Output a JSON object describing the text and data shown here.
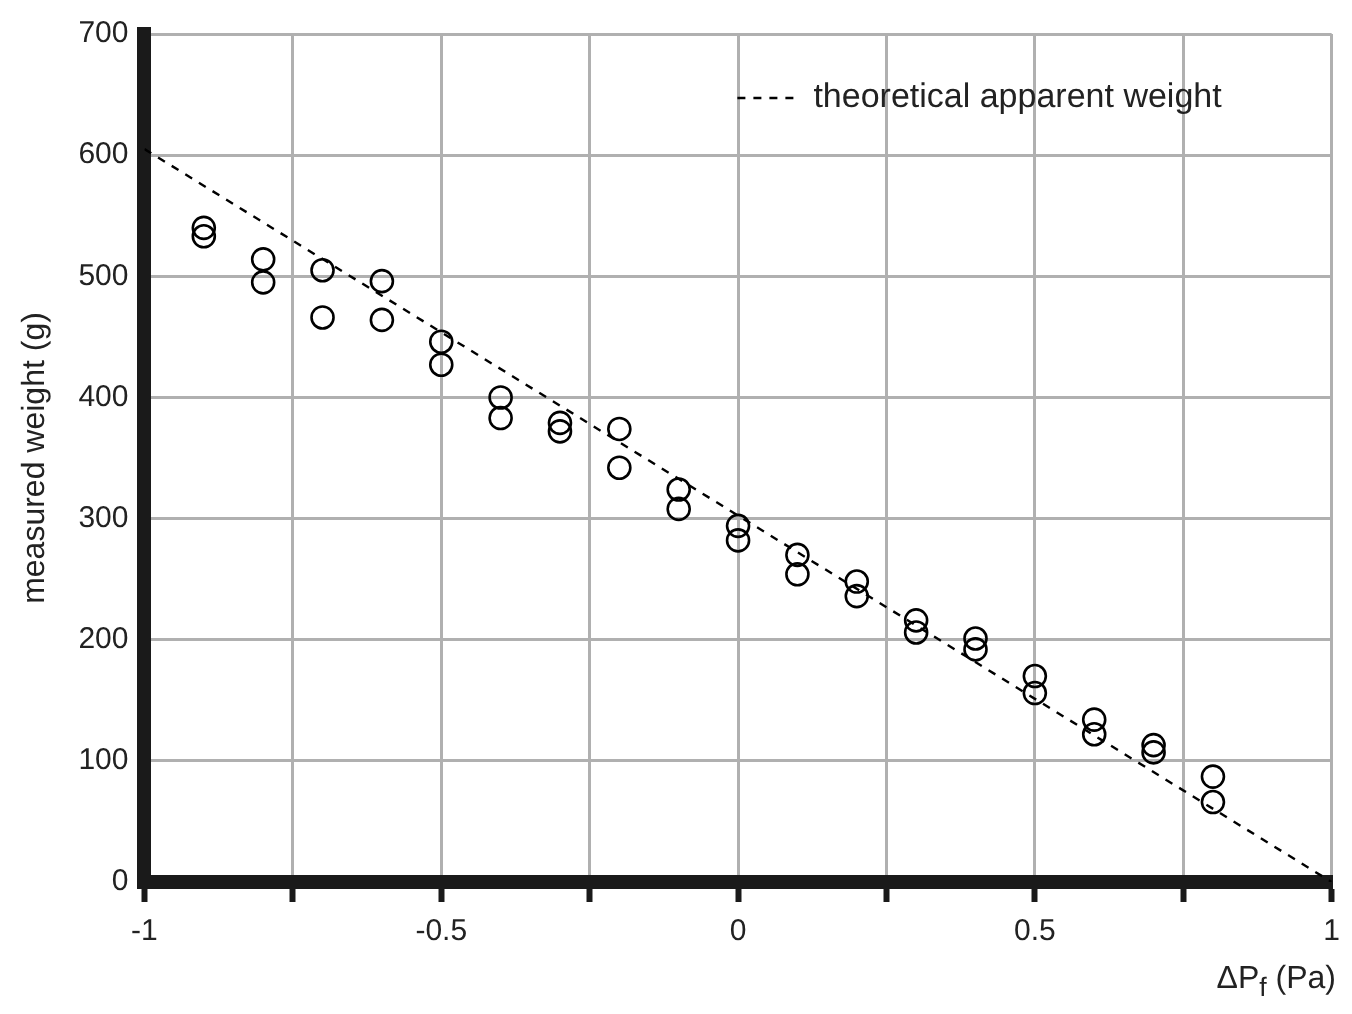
{
  "chart_data": {
    "type": "scatter",
    "xlabel": "ΔP$_{f}$ (Pa)",
    "ylabel": "measured weight (g)",
    "xlim": [
      -1,
      1
    ],
    "xticks": [
      -1,
      {
        "value": -0.75,
        "label": null
      },
      -0.5,
      {
        "value": -0.25,
        "label": null
      },
      0,
      {
        "value": 0.25,
        "label": null
      },
      0.5,
      {
        "value": 0.75,
        "label": null
      },
      1
    ],
    "ylim": [
      0,
      700
    ],
    "yticks": [
      0,
      100,
      200,
      300,
      400,
      500,
      600,
      700
    ],
    "grid": true,
    "legend": "top right",
    "series": [
      {
        "color": "#000000",
        "marker": "circle",
        "x": [
          -0.9,
          -0.9,
          -0.8,
          -0.8,
          -0.7,
          -0.7,
          -0.6,
          -0.6,
          -0.5,
          -0.5,
          -0.4,
          -0.4,
          -0.3,
          -0.3,
          -0.2,
          -0.2,
          -0.1,
          -0.1,
          0,
          0,
          0.1,
          0.1,
          0.2,
          0.2,
          0.3,
          0.3,
          0.4,
          0.4,
          0.5,
          0.5,
          0.6,
          0.6,
          0.7,
          0.7,
          0.8,
          0.8
        ],
        "values": [
          540,
          533,
          514,
          495,
          505,
          466,
          496,
          464,
          446,
          427,
          400,
          383,
          379,
          372,
          374,
          342,
          324,
          308,
          294,
          282,
          270,
          254,
          248,
          236,
          216,
          206,
          201,
          192,
          170,
          156,
          134,
          122,
          113,
          107,
          87,
          66
        ]
      },
      {
        "type": "line",
        "name": "theoretical apparent weight",
        "color": "#000000",
        "line_style": "dashed",
        "marker": "none",
        "x": [
          -1,
          1
        ],
        "values": [
          605,
          0
        ]
      }
    ]
  }
}
